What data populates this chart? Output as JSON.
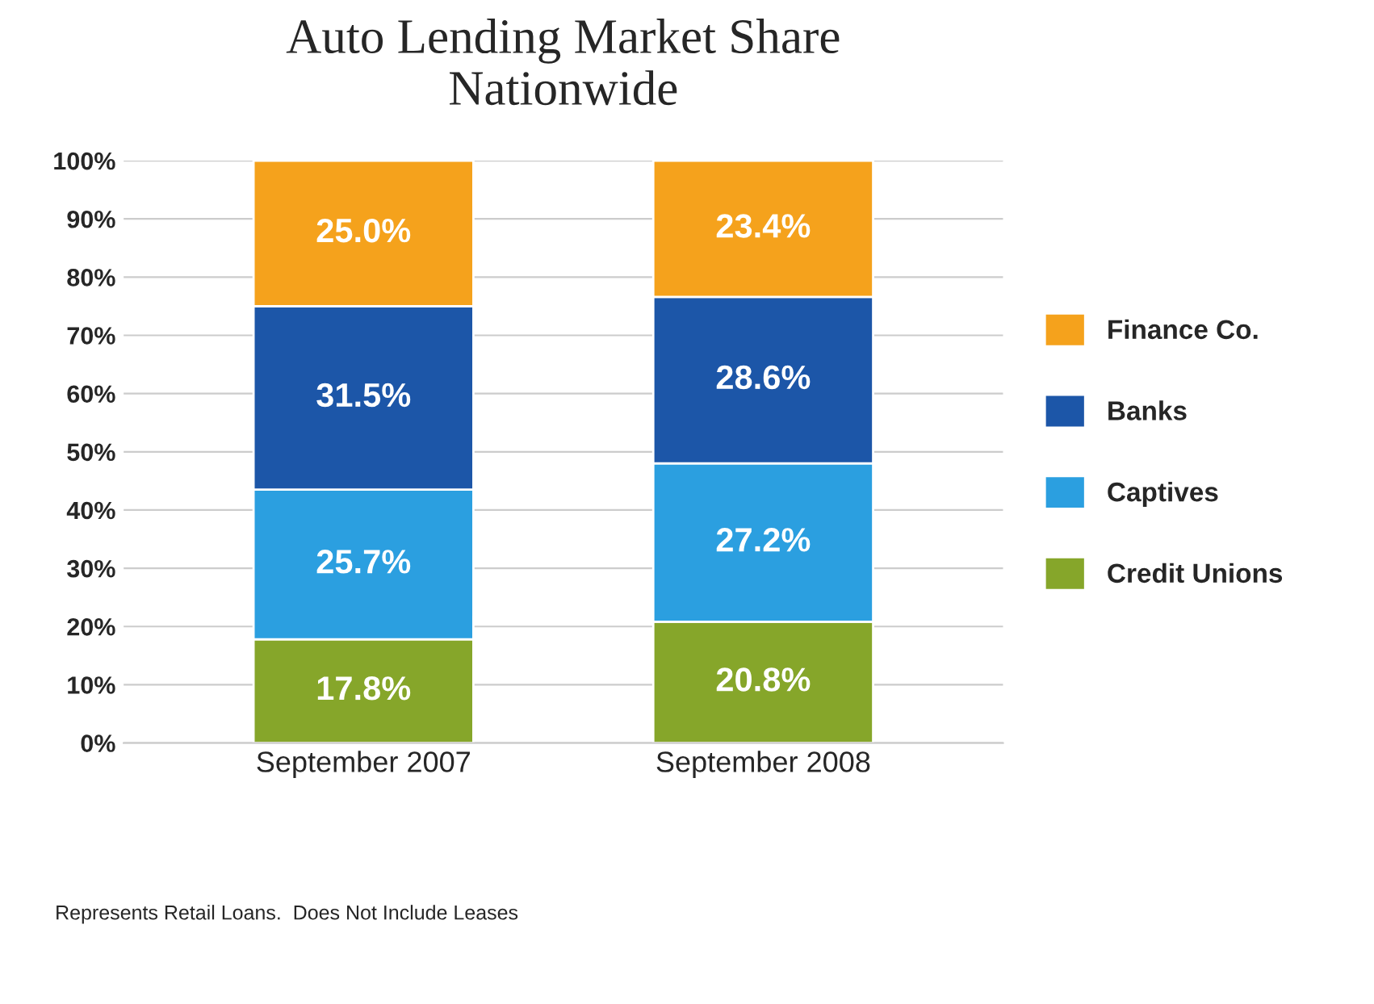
{
  "chart_data": {
    "type": "bar",
    "title": "Auto Lending Market Share\nNationwide",
    "categories": [
      "September 2007",
      "September 2008"
    ],
    "stacked": true,
    "series": [
      {
        "name": "Credit Unions",
        "color": "#86a62a",
        "values": [
          17.8,
          20.8
        ],
        "value_labels": [
          "17.8%",
          "20.8%"
        ]
      },
      {
        "name": "Captives",
        "color": "#2b9fe0",
        "values": [
          25.7,
          27.2
        ],
        "value_labels": [
          "25.7%",
          "27.2%"
        ]
      },
      {
        "name": "Banks",
        "color": "#1c56a8",
        "values": [
          31.5,
          28.6
        ],
        "value_labels": [
          "31.5%",
          "28.6%"
        ]
      },
      {
        "name": "Finance Co.",
        "color": "#f5a21c",
        "values": [
          25.0,
          23.4
        ],
        "value_labels": [
          "25.0%",
          "23.4%"
        ]
      }
    ],
    "ylim": [
      0,
      100
    ],
    "yticks": [
      {
        "value": 0,
        "label": "0%"
      },
      {
        "value": 10,
        "label": "10%"
      },
      {
        "value": 20,
        "label": "20%"
      },
      {
        "value": 30,
        "label": "30%"
      },
      {
        "value": 40,
        "label": "40%"
      },
      {
        "value": 50,
        "label": "50%"
      },
      {
        "value": 60,
        "label": "60%"
      },
      {
        "value": 70,
        "label": "70%"
      },
      {
        "value": 80,
        "label": "80%"
      },
      {
        "value": 90,
        "label": "90%"
      },
      {
        "value": 100,
        "label": "100%"
      }
    ],
    "grid": "y",
    "legend": "right",
    "annotations": [
      "Represents Retail Loans.  Does Not Include Leases"
    ]
  }
}
